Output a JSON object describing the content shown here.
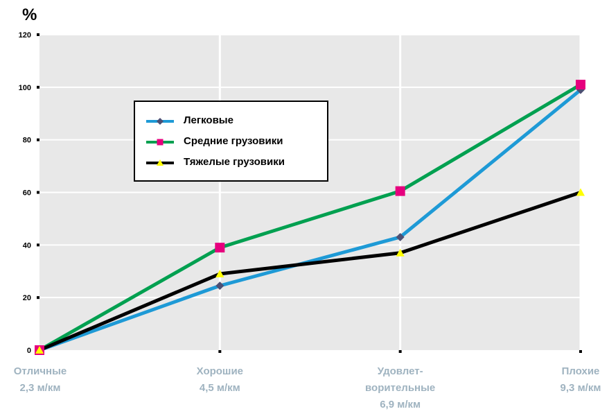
{
  "chart_data": {
    "type": "line",
    "ylabel": "%",
    "ylim": [
      0,
      120
    ],
    "yticks": [
      "0",
      "20",
      "40",
      "60",
      "80",
      "100",
      "120"
    ],
    "categories": [
      [
        "Отличные",
        "2,3 м/км"
      ],
      [
        "Хорошие",
        "4,5 м/км"
      ],
      [
        "Удовлет-",
        "ворительные",
        "6,9 м/км"
      ],
      [
        "Плохие",
        "9,3 м/км"
      ]
    ],
    "series": [
      {
        "name": "Легковые",
        "color": "#1e9ad6",
        "marker": "diamond",
        "marker_color": "#4d4f73",
        "values": [
          0,
          24.5,
          43,
          99
        ]
      },
      {
        "name": "Средние грузовики",
        "color": "#00a050",
        "marker": "square",
        "marker_color": "#e6007e",
        "values": [
          0,
          39,
          60.5,
          101
        ]
      },
      {
        "name": "Тяжелые грузовики",
        "color": "#000000",
        "marker": "triangle",
        "marker_color": "#ffff00",
        "values": [
          0,
          29,
          37,
          60
        ]
      }
    ],
    "grid": true
  }
}
